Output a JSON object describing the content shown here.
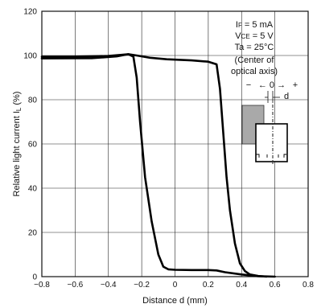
{
  "chart_data": {
    "type": "line",
    "xlabel": "Distance d (mm)",
    "ylabel": "Relative light current I",
    "ylabel_sub": "L",
    "ylabel_unit": "(%)",
    "xlim": [
      -0.8,
      0.8
    ],
    "ylim": [
      0,
      120
    ],
    "xticks": [
      -0.8,
      -0.6,
      -0.4,
      -0.2,
      0,
      0.2,
      0.4,
      0.6,
      0.8
    ],
    "xtick_labels": [
      "−0.8",
      "−0.6",
      "−0.4",
      "−0.2",
      "0",
      "0.2",
      "0.4",
      "0.6",
      "0.8"
    ],
    "yticks": [
      0,
      20,
      40,
      60,
      80,
      100,
      120
    ],
    "ytick_labels": [
      "0",
      "20",
      "40",
      "60",
      "80",
      "100",
      "120"
    ],
    "grid": true,
    "series": [
      {
        "values": [
          [
            -0.8,
            99.5
          ],
          [
            -0.6,
            99.5
          ],
          [
            -0.4,
            99.8
          ],
          [
            -0.32,
            100.3
          ],
          [
            -0.28,
            100.6
          ],
          [
            -0.25,
            99.5
          ],
          [
            -0.23,
            90
          ],
          [
            -0.21,
            70
          ],
          [
            -0.18,
            45
          ],
          [
            -0.14,
            25
          ],
          [
            -0.1,
            10
          ],
          [
            -0.07,
            4.5
          ],
          [
            -0.04,
            3.3
          ],
          [
            0.0,
            3.1
          ],
          [
            0.1,
            3.0
          ],
          [
            0.2,
            3.0
          ],
          [
            0.25,
            2.8
          ],
          [
            0.3,
            2.0
          ],
          [
            0.4,
            1.0
          ],
          [
            0.5,
            0.2
          ],
          [
            0.6,
            0.0
          ]
        ]
      },
      {
        "values": [
          [
            -0.8,
            98.7
          ],
          [
            -0.5,
            98.8
          ],
          [
            -0.35,
            99.6
          ],
          [
            -0.28,
            100.6
          ],
          [
            -0.23,
            100.0
          ],
          [
            -0.15,
            99.0
          ],
          [
            -0.05,
            98.3
          ],
          [
            0.1,
            97.8
          ],
          [
            0.2,
            97.2
          ],
          [
            0.25,
            96.0
          ],
          [
            0.27,
            85
          ],
          [
            0.29,
            65
          ],
          [
            0.31,
            45
          ],
          [
            0.33,
            30
          ],
          [
            0.36,
            15
          ],
          [
            0.39,
            6
          ],
          [
            0.42,
            2.5
          ],
          [
            0.45,
            1.0
          ],
          [
            0.5,
            0.3
          ],
          [
            0.55,
            0.0
          ]
        ]
      }
    ],
    "annotations": {
      "line1_main": "I",
      "line1_sub": "F",
      "line1_rest": " = 5 mA",
      "line2_main": "V",
      "line2_sub": "CE",
      "line2_rest": " = 5 V",
      "line3": "Ta = 25°C",
      "line4": "(Center of",
      "line5": "optical axis)",
      "arrow_left": "−",
      "arrow_zero": "← 0 →",
      "arrow_right": "+",
      "d_label": "d"
    }
  }
}
